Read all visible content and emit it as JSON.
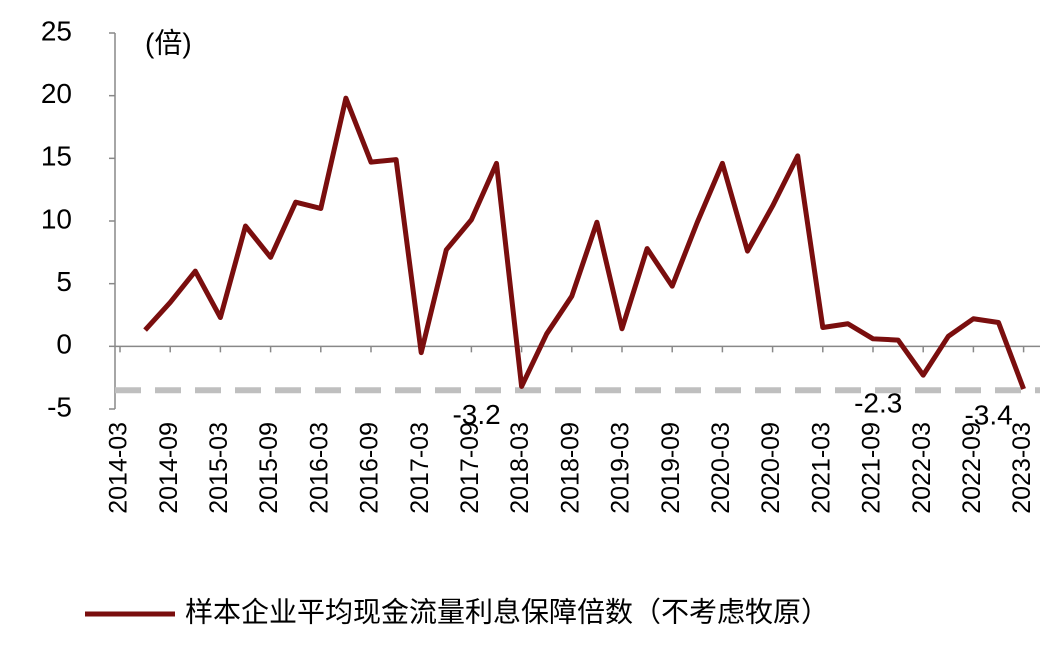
{
  "chart_data": {
    "type": "line",
    "unit_label": "(倍)",
    "categories": [
      "2014-03",
      null,
      "2014-09",
      null,
      "2015-03",
      null,
      "2015-09",
      null,
      "2016-03",
      null,
      "2016-09",
      null,
      "2017-03",
      null,
      "2017-09",
      null,
      "2018-03",
      null,
      "2018-09",
      null,
      "2019-03",
      null,
      "2019-09",
      null,
      "2020-03",
      null,
      "2020-09",
      null,
      "2021-03",
      null,
      "2021-09",
      null,
      "2022-03",
      null,
      "2022-09",
      null,
      "2023-03"
    ],
    "series": [
      {
        "name": "样本企业平均现金流量利息保障倍数（不考虑牧原）",
        "color": "#7a0e0e",
        "values": [
          null,
          1.3,
          3.5,
          6,
          2.3,
          9.6,
          7.1,
          11.5,
          11,
          19.8,
          14.7,
          14.9,
          -0.5,
          7.7,
          10.1,
          14.6,
          -3.2,
          1,
          4,
          9.9,
          1.4,
          7.8,
          4.8,
          9.9,
          14.6,
          7.6,
          11.2,
          15.2,
          1.5,
          1.8,
          0.6,
          0.5,
          -2.3,
          0.8,
          2.2,
          1.9,
          -3.4
        ],
        "value_labels": [
          null,
          null,
          null,
          null,
          null,
          null,
          null,
          null,
          null,
          null,
          null,
          null,
          null,
          null,
          null,
          null,
          "-3.2",
          null,
          null,
          null,
          null,
          null,
          null,
          null,
          null,
          null,
          null,
          null,
          null,
          null,
          null,
          null,
          "-2.3",
          null,
          null,
          null,
          "-3.4"
        ]
      }
    ],
    "reference_line": {
      "value": -3.5,
      "color": "#bfbfbf"
    },
    "ylim": [
      -5,
      25
    ],
    "yticks": [
      -5,
      0,
      5,
      10,
      15,
      20,
      25
    ],
    "legend": "bottom"
  }
}
